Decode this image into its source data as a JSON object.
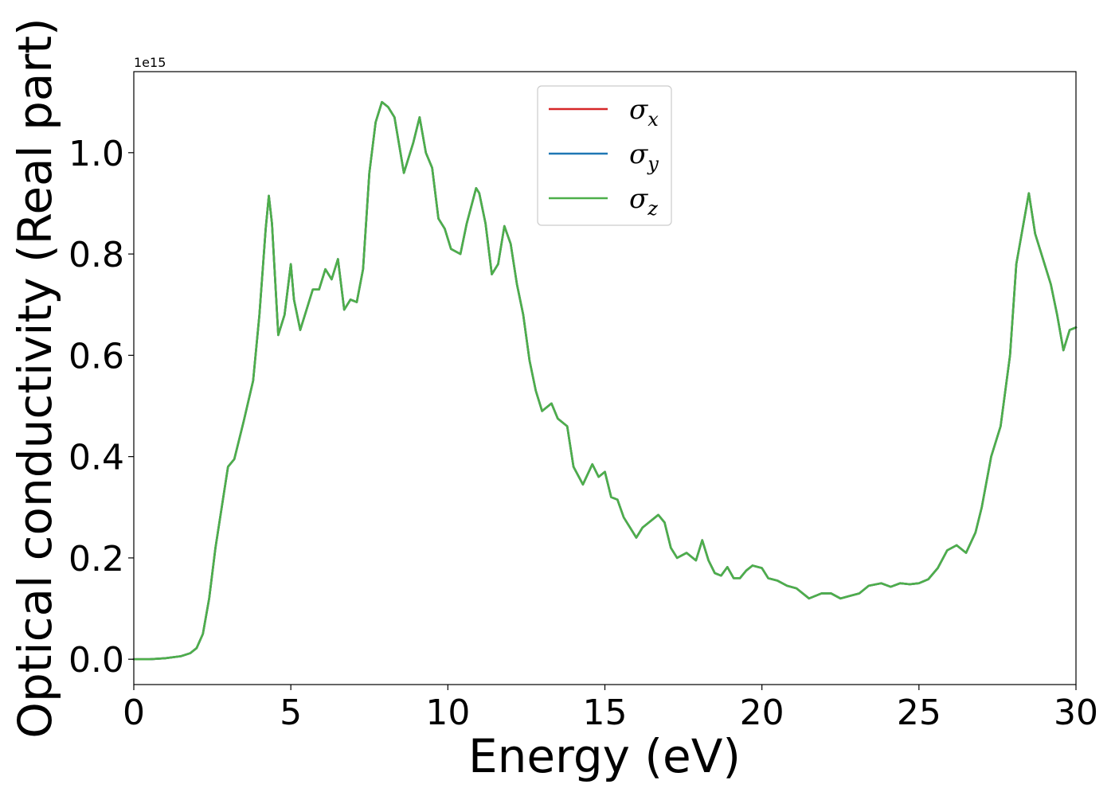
{
  "chart_data": {
    "type": "line",
    "xlabel": "Energy (eV)",
    "ylabel": "Optical conductivity (Real part)",
    "y_offset_label": "1e15",
    "y_scale": 1000000000000000.0,
    "xlim": [
      0,
      30
    ],
    "ylim": [
      -0.05,
      1.16
    ],
    "x_ticks": [
      0,
      5,
      10,
      15,
      20,
      25,
      30
    ],
    "x_tick_labels": [
      "0",
      "5",
      "10",
      "15",
      "20",
      "25",
      "30"
    ],
    "y_ticks": [
      0.0,
      0.2,
      0.4,
      0.6,
      0.8,
      1.0
    ],
    "y_tick_labels": [
      "0.0",
      "0.2",
      "0.4",
      "0.6",
      "0.8",
      "1.0"
    ],
    "grid": false,
    "legend_position": "top-center",
    "colors": {
      "sigma_x": "#d62728",
      "sigma_y": "#1f77b4",
      "sigma_z": "#4daf4a"
    },
    "series": [
      {
        "name": "σx",
        "symbol": "σ",
        "subscript": "x",
        "color": "#d62728"
      },
      {
        "name": "σy",
        "symbol": "σ",
        "subscript": "y",
        "color": "#1f77b4"
      },
      {
        "name": "σz",
        "symbol": "σ",
        "subscript": "z",
        "color": "#4daf4a"
      }
    ],
    "x": [
      0,
      0.5,
      1.0,
      1.5,
      1.8,
      2.0,
      2.2,
      2.4,
      2.6,
      2.8,
      3.0,
      3.2,
      3.3,
      3.5,
      3.8,
      4.0,
      4.2,
      4.3,
      4.4,
      4.6,
      4.8,
      5.0,
      5.1,
      5.3,
      5.5,
      5.7,
      5.9,
      6.1,
      6.3,
      6.5,
      6.7,
      6.9,
      7.1,
      7.3,
      7.5,
      7.7,
      7.9,
      8.1,
      8.3,
      8.6,
      8.9,
      9.1,
      9.3,
      9.5,
      9.7,
      9.9,
      10.1,
      10.4,
      10.6,
      10.9,
      11.0,
      11.2,
      11.4,
      11.6,
      11.8,
      12.0,
      12.2,
      12.4,
      12.6,
      12.8,
      13.0,
      13.3,
      13.5,
      13.8,
      14.0,
      14.3,
      14.6,
      14.8,
      15.0,
      15.2,
      15.4,
      15.6,
      15.8,
      16.0,
      16.2,
      16.4,
      16.7,
      16.9,
      17.1,
      17.3,
      17.6,
      17.9,
      18.1,
      18.3,
      18.5,
      18.7,
      18.9,
      19.1,
      19.3,
      19.5,
      19.7,
      20.0,
      20.2,
      20.5,
      20.8,
      21.1,
      21.5,
      21.9,
      22.2,
      22.5,
      22.8,
      23.1,
      23.4,
      23.8,
      24.1,
      24.4,
      24.7,
      25.0,
      25.3,
      25.6,
      25.9,
      26.2,
      26.5,
      26.8,
      27.0,
      27.3,
      27.6,
      27.9,
      28.1,
      28.3,
      28.5,
      28.7,
      29.0,
      29.2,
      29.4,
      29.6,
      29.8,
      30.0
    ],
    "y": [
      0.0,
      0.0,
      0.002,
      0.006,
      0.012,
      0.022,
      0.05,
      0.12,
      0.22,
      0.3,
      0.38,
      0.395,
      0.42,
      0.47,
      0.55,
      0.68,
      0.85,
      0.915,
      0.86,
      0.64,
      0.68,
      0.78,
      0.71,
      0.65,
      0.69,
      0.73,
      0.73,
      0.77,
      0.75,
      0.79,
      0.69,
      0.71,
      0.705,
      0.77,
      0.96,
      1.06,
      1.1,
      1.09,
      1.07,
      0.96,
      1.02,
      1.07,
      1.0,
      0.97,
      0.87,
      0.85,
      0.81,
      0.8,
      0.86,
      0.93,
      0.92,
      0.86,
      0.76,
      0.78,
      0.855,
      0.82,
      0.74,
      0.68,
      0.59,
      0.53,
      0.49,
      0.505,
      0.475,
      0.46,
      0.38,
      0.345,
      0.385,
      0.36,
      0.37,
      0.32,
      0.315,
      0.28,
      0.26,
      0.24,
      0.26,
      0.27,
      0.285,
      0.27,
      0.22,
      0.2,
      0.21,
      0.195,
      0.235,
      0.195,
      0.17,
      0.165,
      0.182,
      0.16,
      0.16,
      0.175,
      0.185,
      0.18,
      0.16,
      0.155,
      0.145,
      0.14,
      0.12,
      0.13,
      0.13,
      0.12,
      0.125,
      0.13,
      0.145,
      0.15,
      0.143,
      0.15,
      0.148,
      0.15,
      0.158,
      0.18,
      0.215,
      0.225,
      0.21,
      0.25,
      0.3,
      0.4,
      0.46,
      0.6,
      0.78,
      0.85,
      0.92,
      0.84,
      0.78,
      0.74,
      0.68,
      0.61,
      0.65,
      0.655
    ]
  }
}
